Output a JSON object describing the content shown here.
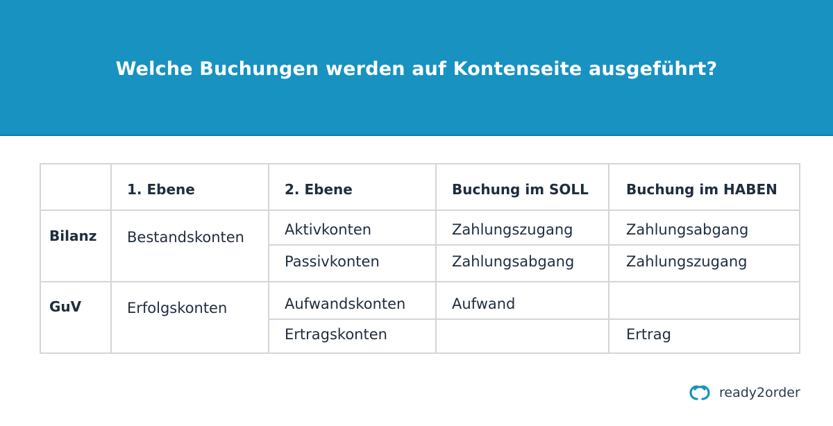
{
  "header": {
    "title": "Welche Buchungen werden auf Kontenseite ausgeführt?"
  },
  "table": {
    "headers": [
      "",
      "1. Ebene",
      "2. Ebene",
      "Buchung im SOLL",
      "Buchung im HABEN"
    ],
    "groups": [
      {
        "label": "Bilanz",
        "level1": "Bestandskonten",
        "rows": [
          {
            "level2": "Aktivkonten",
            "soll": "Zahlungszugang",
            "haben": "Zahlungsabgang"
          },
          {
            "level2": "Passivkonten",
            "soll": "Zahlungsabgang",
            "haben": "Zahlungszugang"
          }
        ]
      },
      {
        "label": "GuV",
        "level1": "Erfolgskonten",
        "rows": [
          {
            "level2": "Aufwandskonten",
            "soll": "Aufwand",
            "haben": ""
          },
          {
            "level2": "Ertragskonten",
            "soll": "",
            "haben": "Ertrag"
          }
        ]
      }
    ]
  },
  "brand": {
    "name": "ready2order",
    "logo_icon": "linked-rings-logo-icon",
    "accent": "#1892c0"
  }
}
